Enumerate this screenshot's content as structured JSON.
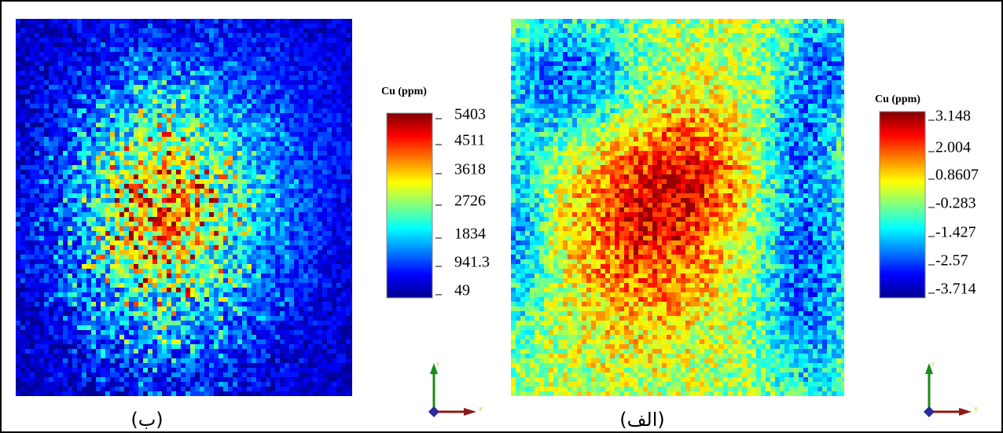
{
  "panels": [
    {
      "label": "(ب)",
      "colorbar": {
        "title": "Cu (ppm)",
        "ticks": [
          "5403",
          "4511",
          "3618",
          "2726",
          "1834",
          "941.3",
          "49"
        ]
      }
    },
    {
      "label": "(الف)",
      "colorbar": {
        "title": "Cu (ppm)",
        "ticks": [
          "3.148",
          "2.004",
          "0.8607",
          "-0.283",
          "-1.427",
          "-2.57",
          "-3.714"
        ]
      }
    }
  ],
  "axes_icon": {
    "y": "Y",
    "x": "X"
  }
}
